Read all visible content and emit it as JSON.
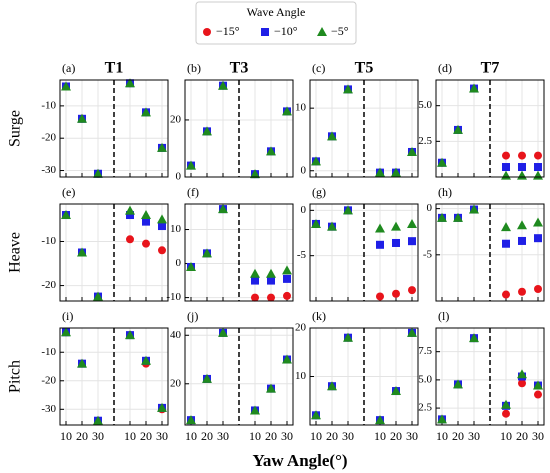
{
  "legend_title": "Wave Angle",
  "legend": [
    {
      "name": "−15°",
      "color": "#e8141b",
      "marker": "circle"
    },
    {
      "name": "−10°",
      "color": "#1f1fe6",
      "marker": "square"
    },
    {
      "name": "−5°",
      "color": "#1f8a1f",
      "marker": "triangle"
    }
  ],
  "column_titles": [
    "T1",
    "T3",
    "T5",
    "T7"
  ],
  "row_labels": [
    "Surge",
    "Heave",
    "Pitch"
  ],
  "x_label": "Yaw Angle(°)",
  "grid": true,
  "chart_data": [
    {
      "type": "scatter",
      "panel_label": "(a)",
      "ylim": [
        -32,
        -2
      ],
      "yticks": [
        -30,
        -20,
        -10
      ],
      "series": [
        {
          "values": [
            -4,
            -14,
            -31,
            null,
            -3,
            -12,
            -23
          ]
        },
        {
          "values": [
            -4,
            -14,
            -31,
            null,
            -3,
            -12,
            -23
          ]
        },
        {
          "values": [
            -4,
            -14,
            -31,
            null,
            -3,
            -12,
            -23
          ]
        }
      ]
    },
    {
      "type": "scatter",
      "panel_label": "(b)",
      "ylim": [
        0,
        34
      ],
      "yticks": [
        0,
        20
      ],
      "series": [
        {
          "values": [
            4,
            16,
            32,
            null,
            1,
            9,
            23
          ]
        },
        {
          "values": [
            4,
            16,
            32,
            null,
            1,
            9,
            23
          ]
        },
        {
          "values": [
            4,
            16,
            32,
            null,
            1,
            9,
            23
          ]
        }
      ]
    },
    {
      "type": "scatter",
      "panel_label": "(c)",
      "ylim": [
        -1,
        14.5
      ],
      "yticks": [
        0,
        10
      ],
      "series": [
        {
          "values": [
            1.5,
            5.5,
            13,
            null,
            -0.3,
            -0.3,
            3
          ]
        },
        {
          "values": [
            1.5,
            5.5,
            13,
            null,
            -0.3,
            -0.3,
            3
          ]
        },
        {
          "values": [
            1.5,
            5.5,
            13,
            null,
            -0.3,
            -0.3,
            3
          ]
        }
      ]
    },
    {
      "type": "scatter",
      "panel_label": "(d)",
      "ylim": [
        0,
        6.8
      ],
      "yticks": [
        2.5,
        {
          "value": 5,
          "label": "5.0"
        }
      ],
      "series": [
        {
          "values": [
            1,
            3.3,
            6.2,
            null,
            1.5,
            1.5,
            1.5
          ]
        },
        {
          "values": [
            1,
            3.3,
            6.2,
            null,
            0.7,
            0.7,
            0.7
          ]
        },
        {
          "values": [
            1,
            3.3,
            6.2,
            null,
            0.1,
            0.1,
            0.1
          ]
        }
      ]
    },
    {
      "type": "scatter",
      "panel_label": "(e)",
      "ylim": [
        -23.5,
        -1.5
      ],
      "yticks": [
        -20,
        -10
      ],
      "series": [
        {
          "values": [
            -4,
            -12.5,
            -22.5,
            null,
            -9.5,
            -10.5,
            -12
          ]
        },
        {
          "values": [
            -4,
            -12.5,
            -22.5,
            null,
            -4,
            -5.5,
            -6.5
          ]
        },
        {
          "values": [
            -4,
            -12.5,
            -22.5,
            null,
            -3,
            -4,
            -5
          ]
        }
      ]
    },
    {
      "type": "scatter",
      "panel_label": "(f)",
      "ylim": [
        -11,
        17.5
      ],
      "yticks": [
        -10,
        0,
        10
      ],
      "series": [
        {
          "values": [
            -1,
            3,
            16,
            null,
            -10,
            -10,
            -9.5
          ]
        },
        {
          "values": [
            -1,
            3,
            16,
            null,
            -5,
            -5,
            -4.5
          ]
        },
        {
          "values": [
            -1,
            3,
            16,
            null,
            -3,
            -3,
            -2
          ]
        }
      ]
    },
    {
      "type": "scatter",
      "panel_label": "(g)",
      "ylim": [
        -10,
        0.7
      ],
      "yticks": [
        -5,
        0
      ],
      "series": [
        {
          "values": [
            -1.5,
            -1.8,
            0,
            null,
            -9.5,
            -9.2,
            -8.8
          ]
        },
        {
          "values": [
            -1.5,
            -1.8,
            0,
            null,
            -3.8,
            -3.6,
            -3.4
          ]
        },
        {
          "values": [
            -1.5,
            -1.8,
            0,
            null,
            -2,
            -1.8,
            -1.5
          ]
        }
      ]
    },
    {
      "type": "scatter",
      "panel_label": "(h)",
      "ylim": [
        -10,
        0.5
      ],
      "yticks": [
        -5,
        0
      ],
      "series": [
        {
          "values": [
            -1,
            -1,
            -0.1,
            null,
            -9.3,
            -9,
            -8.7
          ]
        },
        {
          "values": [
            -1,
            -1,
            -0.1,
            null,
            -3.8,
            -3.5,
            -3.2
          ]
        },
        {
          "values": [
            -1,
            -1,
            -0.1,
            null,
            -2,
            -1.8,
            -1.5
          ]
        }
      ]
    },
    {
      "type": "scatter",
      "panel_label": "(i)",
      "categories": [
        10,
        20,
        30,
        null,
        10,
        20,
        30
      ],
      "ylim": [
        -35.5,
        -1.5
      ],
      "yticks": [
        -30,
        -20,
        -10
      ],
      "series": [
        {
          "values": [
            -3,
            -14,
            -34,
            null,
            -4,
            -14,
            -30
          ]
        },
        {
          "values": [
            -3,
            -14,
            -34,
            null,
            -4,
            -13,
            -29.5
          ]
        },
        {
          "values": [
            -3,
            -14,
            -34,
            null,
            -4,
            -13,
            -29.5
          ]
        }
      ]
    },
    {
      "type": "scatter",
      "panel_label": "(j)",
      "categories": [
        10,
        20,
        30,
        null,
        10,
        20,
        30
      ],
      "ylim": [
        3,
        43
      ],
      "yticks": [
        20,
        40
      ],
      "series": [
        {
          "values": [
            5,
            22,
            41,
            null,
            9,
            18,
            30
          ]
        },
        {
          "values": [
            5,
            22,
            41,
            null,
            9,
            18,
            30
          ]
        },
        {
          "values": [
            5,
            22,
            41,
            null,
            9,
            18,
            30
          ]
        }
      ]
    },
    {
      "type": "scatter",
      "panel_label": "(k)",
      "categories": [
        10,
        20,
        30,
        null,
        10,
        20,
        30
      ],
      "ylim": [
        0,
        20
      ],
      "yticks": [
        10,
        20
      ],
      "series": [
        {
          "values": [
            2,
            8,
            18,
            null,
            1,
            7,
            19
          ]
        },
        {
          "values": [
            2,
            8,
            18,
            null,
            1,
            7,
            19
          ]
        },
        {
          "values": [
            2,
            8,
            18,
            null,
            1,
            7,
            19
          ]
        }
      ]
    },
    {
      "type": "scatter",
      "panel_label": "(l)",
      "categories": [
        10,
        20,
        30,
        null,
        10,
        20,
        30
      ],
      "ylim": [
        1,
        9.6
      ],
      "yticks": [
        2.5,
        {
          "value": 5,
          "label": "5.0"
        },
        7.5
      ],
      "series": [
        {
          "values": [
            1.5,
            4.6,
            8.7,
            null,
            2,
            4.7,
            3.7
          ]
        },
        {
          "values": [
            1.5,
            4.6,
            8.7,
            null,
            2.7,
            5.3,
            4.5
          ]
        },
        {
          "values": [
            1.5,
            4.6,
            8.7,
            null,
            2.8,
            5.5,
            4.5
          ]
        }
      ]
    }
  ]
}
